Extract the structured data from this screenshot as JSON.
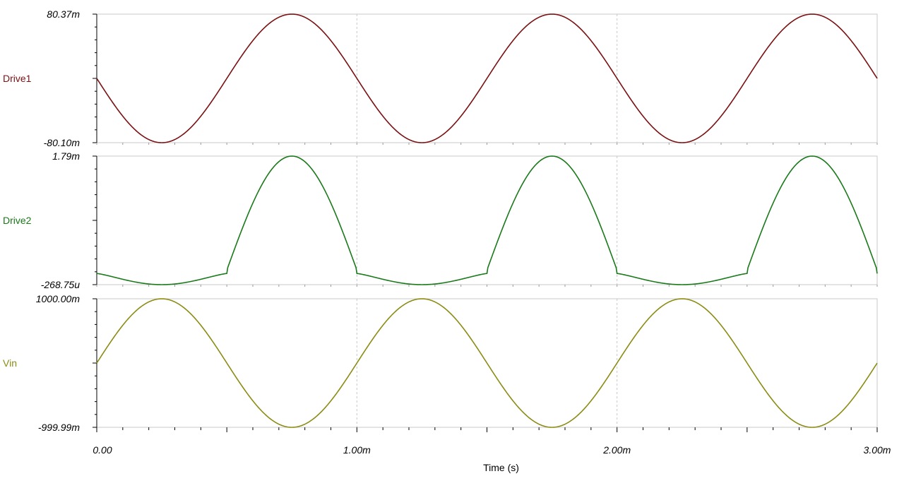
{
  "chart_data": {
    "type": "line",
    "xlabel": "Time (s)",
    "xlim": [
      0,
      0.003
    ],
    "x_ticks": [
      {
        "value": 0,
        "label": "0.00"
      },
      {
        "value": 0.001,
        "label": "1.00m"
      },
      {
        "value": 0.002,
        "label": "2.00m"
      },
      {
        "value": 0.003,
        "label": "3.00m"
      }
    ],
    "grid": "vertical dashed at major x ticks",
    "series": [
      {
        "name": "Drive1",
        "color": "#7b1113",
        "ylim": [
          -0.0801,
          0.08037
        ],
        "ymax_label": "80.37m",
        "ymin_label": "-80.10m",
        "shape": "inverted sine, 1 kHz",
        "x": [
          0,
          0.00025,
          0.0005,
          0.00075,
          0.001,
          0.00125,
          0.0015,
          0.00175,
          0.002,
          0.00225,
          0.0025,
          0.00275,
          0.003
        ],
        "y": [
          0.0001,
          -0.0801,
          0.0001,
          0.08037,
          0.0001,
          -0.0801,
          0.0001,
          0.08037,
          0.0001,
          -0.0801,
          0.0001,
          0.08037,
          0.0001
        ]
      },
      {
        "name": "Drive2",
        "color": "#1a7a1a",
        "ylim": [
          -0.00026875,
          0.00179
        ],
        "ymax_label": "1.79m",
        "ymin_label": "-268.75u",
        "shape": "half-wave rectified positive lobes of Drive1 with small negative tail",
        "x": [
          0,
          0.00025,
          0.0005,
          0.00075,
          0.001,
          0.00125,
          0.0015,
          0.00175,
          0.002,
          0.00225,
          0.0025,
          0.00275,
          0.003
        ],
        "y": [
          -6e-05,
          -0.000268,
          -9e-05,
          0.00179,
          -6e-05,
          -0.000268,
          -9e-05,
          0.00179,
          -6e-05,
          -0.000268,
          -9e-05,
          0.00179,
          -6e-05
        ]
      },
      {
        "name": "Vin",
        "color": "#8c8c14",
        "ylim": [
          -0.99999,
          1.0
        ],
        "ymax_label": "1000.00m",
        "ymin_label": "-999.99m",
        "shape": "sine, 1 kHz",
        "x": [
          0,
          0.00025,
          0.0005,
          0.00075,
          0.001,
          0.00125,
          0.0015,
          0.00175,
          0.002,
          0.00225,
          0.0025,
          0.00275,
          0.003
        ],
        "y": [
          0,
          1.0,
          0,
          -0.99999,
          0,
          1.0,
          0,
          -0.99999,
          0,
          1.0,
          0,
          -0.99999,
          0
        ]
      }
    ]
  }
}
